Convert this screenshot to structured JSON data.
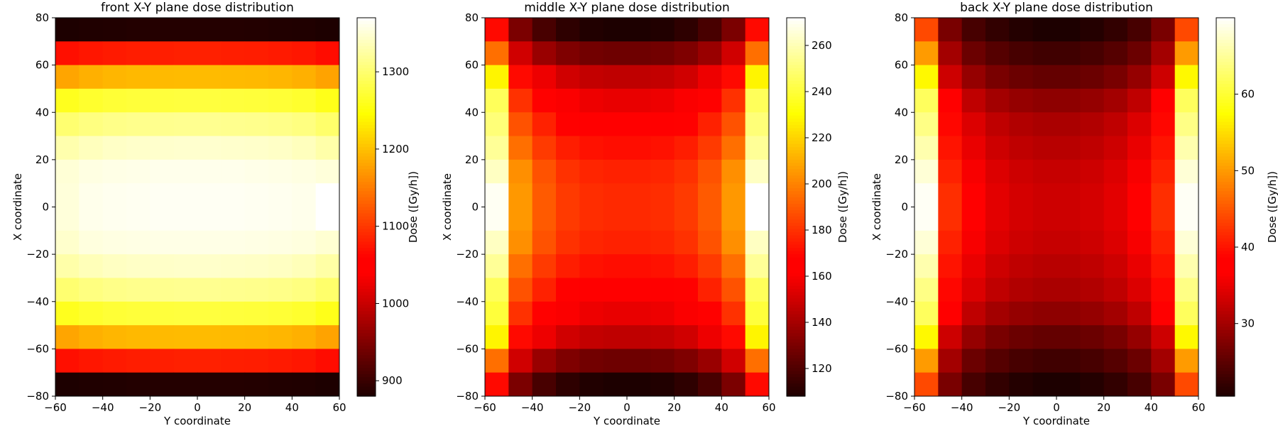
{
  "colormap": "hot",
  "colors": {
    "axis": "#000000",
    "background": "#ffffff"
  },
  "chart_data": [
    {
      "type": "heatmap",
      "title": "front X-Y plane dose distribution",
      "xlabel": "Y coordinate",
      "ylabel": "X coordinate",
      "colorbar_label": "Dose ([Gy/h])",
      "xlim": [
        -60,
        60
      ],
      "ylim": [
        -80,
        80
      ],
      "x_ticks": [
        "−60",
        "−40",
        "−20",
        "0",
        "20",
        "40",
        "60"
      ],
      "y_ticks": [
        "−80",
        "−60",
        "−40",
        "−20",
        "0",
        "20",
        "40",
        "60",
        "80"
      ],
      "x_edges": [
        -60,
        -50,
        -40,
        -30,
        -20,
        -10,
        0,
        10,
        20,
        30,
        40,
        50,
        60
      ],
      "y_edges": [
        80,
        70,
        60,
        50,
        40,
        30,
        20,
        10,
        0,
        -10,
        -20,
        -30,
        -40,
        -50,
        -60,
        -70,
        -80
      ],
      "clim": [
        880,
        1370
      ],
      "colorbar_ticks": [
        "900",
        "1000",
        "1100",
        "1200",
        "1300"
      ],
      "z": [
        [
          880,
          882,
          883,
          884,
          885,
          885,
          885,
          885,
          884,
          883,
          882,
          880
        ],
        [
          1070,
          1075,
          1078,
          1080,
          1081,
          1082,
          1082,
          1081,
          1080,
          1078,
          1075,
          1068
        ],
        [
          1180,
          1188,
          1192,
          1194,
          1195,
          1196,
          1196,
          1195,
          1194,
          1192,
          1188,
          1178
        ],
        [
          1260,
          1268,
          1272,
          1274,
          1275,
          1276,
          1276,
          1275,
          1274,
          1272,
          1268,
          1258
        ],
        [
          1300,
          1308,
          1312,
          1314,
          1315,
          1316,
          1316,
          1315,
          1314,
          1312,
          1308,
          1298
        ],
        [
          1330,
          1338,
          1342,
          1344,
          1345,
          1346,
          1346,
          1345,
          1344,
          1342,
          1338,
          1328
        ],
        [
          1350,
          1356,
          1358,
          1359,
          1360,
          1360,
          1360,
          1360,
          1359,
          1358,
          1356,
          1352
        ],
        [
          1352,
          1360,
          1362,
          1363,
          1364,
          1364,
          1364,
          1364,
          1363,
          1362,
          1360,
          1370
        ],
        [
          1352,
          1360,
          1362,
          1363,
          1364,
          1364,
          1364,
          1364,
          1363,
          1362,
          1360,
          1370
        ],
        [
          1345,
          1354,
          1356,
          1357,
          1358,
          1358,
          1358,
          1358,
          1357,
          1356,
          1354,
          1348
        ],
        [
          1328,
          1336,
          1340,
          1342,
          1343,
          1344,
          1344,
          1343,
          1342,
          1340,
          1336,
          1326
        ],
        [
          1300,
          1308,
          1312,
          1314,
          1315,
          1316,
          1316,
          1315,
          1314,
          1312,
          1308,
          1298
        ],
        [
          1260,
          1268,
          1272,
          1274,
          1275,
          1276,
          1276,
          1275,
          1274,
          1272,
          1268,
          1258
        ],
        [
          1180,
          1188,
          1192,
          1194,
          1195,
          1196,
          1196,
          1195,
          1194,
          1192,
          1188,
          1178
        ],
        [
          1070,
          1075,
          1078,
          1080,
          1081,
          1082,
          1082,
          1081,
          1080,
          1078,
          1075,
          1068
        ],
        [
          880,
          882,
          883,
          884,
          885,
          885,
          885,
          885,
          884,
          883,
          882,
          880
        ]
      ]
    },
    {
      "type": "heatmap",
      "title": "middle X-Y plane dose distribution",
      "xlabel": "Y coordinate",
      "ylabel": "X coordinate",
      "colorbar_label": "Dose ([Gy/h])",
      "xlim": [
        -60,
        60
      ],
      "ylim": [
        -80,
        80
      ],
      "x_ticks": [
        "−60",
        "−40",
        "−20",
        "0",
        "20",
        "40",
        "60"
      ],
      "y_ticks": [
        "−80",
        "−60",
        "−40",
        "−20",
        "0",
        "20",
        "40",
        "60",
        "80"
      ],
      "x_edges": [
        -60,
        -50,
        -40,
        -30,
        -20,
        -10,
        0,
        10,
        20,
        30,
        40,
        50,
        60
      ],
      "y_edges": [
        80,
        70,
        60,
        50,
        40,
        30,
        20,
        10,
        0,
        -10,
        -20,
        -30,
        -40,
        -50,
        -60,
        -70,
        -80
      ],
      "clim": [
        108,
        272
      ],
      "colorbar_ticks": [
        "120",
        "140",
        "160",
        "180",
        "200",
        "220",
        "240",
        "260"
      ],
      "z": [
        [
          170,
          130,
          118,
          112,
          109,
          108,
          108,
          109,
          112,
          118,
          130,
          170
        ],
        [
          195,
          150,
          137,
          131,
          128,
          127,
          127,
          128,
          131,
          137,
          150,
          195
        ],
        [
          228,
          170,
          157,
          150,
          147,
          146,
          146,
          147,
          150,
          157,
          170,
          228
        ],
        [
          245,
          180,
          168,
          160,
          157,
          156,
          156,
          157,
          160,
          168,
          180,
          245
        ],
        [
          250,
          188,
          176,
          168,
          165,
          164,
          164,
          165,
          168,
          176,
          188,
          250
        ],
        [
          255,
          195,
          182,
          175,
          172,
          171,
          171,
          172,
          175,
          182,
          195,
          255
        ],
        [
          262,
          203,
          188,
          180,
          177,
          176,
          176,
          177,
          180,
          188,
          203,
          262
        ],
        [
          270,
          205,
          190,
          182,
          179,
          178,
          178,
          179,
          182,
          190,
          205,
          272
        ],
        [
          270,
          205,
          190,
          182,
          179,
          178,
          178,
          179,
          182,
          190,
          205,
          272
        ],
        [
          262,
          203,
          188,
          180,
          177,
          176,
          176,
          177,
          180,
          188,
          203,
          262
        ],
        [
          255,
          195,
          182,
          175,
          172,
          171,
          171,
          172,
          175,
          182,
          195,
          255
        ],
        [
          245,
          188,
          176,
          168,
          165,
          164,
          164,
          165,
          168,
          176,
          188,
          245
        ],
        [
          240,
          180,
          168,
          160,
          157,
          156,
          156,
          157,
          160,
          168,
          180,
          240
        ],
        [
          228,
          170,
          157,
          150,
          147,
          146,
          146,
          147,
          150,
          157,
          170,
          228
        ],
        [
          195,
          150,
          137,
          131,
          128,
          127,
          127,
          128,
          131,
          137,
          150,
          195
        ],
        [
          170,
          130,
          118,
          112,
          109,
          108,
          108,
          109,
          112,
          118,
          130,
          170
        ]
      ]
    },
    {
      "type": "heatmap",
      "title": "back X-Y plane dose distribution",
      "xlabel": "Y coordinate",
      "ylabel": "X coordinate",
      "colorbar_label": "Dose ([Gy/h])",
      "xlim": [
        -60,
        60
      ],
      "ylim": [
        -80,
        80
      ],
      "x_ticks": [
        "−60",
        "−40",
        "−20",
        "0",
        "20",
        "40",
        "60"
      ],
      "y_ticks": [
        "−80",
        "−60",
        "−40",
        "−20",
        "0",
        "20",
        "40",
        "60",
        "80"
      ],
      "x_edges": [
        -60,
        -50,
        -40,
        -30,
        -20,
        -10,
        0,
        10,
        20,
        30,
        40,
        50,
        60
      ],
      "y_edges": [
        80,
        70,
        60,
        50,
        40,
        30,
        20,
        10,
        0,
        -10,
        -20,
        -30,
        -40,
        -50,
        -60,
        -70,
        -80
      ],
      "clim": [
        20.5,
        70
      ],
      "colorbar_ticks": [
        "30",
        "40",
        "50",
        "60"
      ],
      "z": [
        [
          44,
          27,
          23.5,
          22,
          21,
          20.5,
          20.5,
          21,
          22,
          23.5,
          27,
          44
        ],
        [
          50,
          30,
          26,
          24.5,
          23.5,
          23,
          23,
          23.5,
          24.5,
          26,
          30,
          50
        ],
        [
          57,
          33,
          29,
          27,
          26,
          25.5,
          25.5,
          26,
          27,
          29,
          33,
          57
        ],
        [
          62,
          37,
          32,
          30,
          29,
          28.5,
          28.5,
          29,
          30,
          32,
          37,
          62
        ],
        [
          64,
          39,
          34,
          32,
          31,
          30.5,
          30.5,
          31,
          32,
          34,
          39,
          64
        ],
        [
          66,
          40,
          35,
          33,
          32,
          31.5,
          31.5,
          32,
          33,
          35,
          40,
          66
        ],
        [
          68,
          41,
          36,
          34,
          33,
          32.5,
          32.5,
          33,
          34,
          36,
          41,
          68
        ],
        [
          69.5,
          42,
          36.5,
          34.5,
          33.5,
          33,
          33,
          33.5,
          34.5,
          36.5,
          42,
          69.5
        ],
        [
          69.5,
          42,
          36.5,
          34.5,
          33.5,
          33,
          33,
          33.5,
          34.5,
          36.5,
          42,
          69.5
        ],
        [
          68,
          41,
          36,
          34,
          33,
          32.5,
          32.5,
          33,
          34,
          36,
          41,
          68
        ],
        [
          66,
          40,
          35,
          33,
          32,
          31.5,
          31.5,
          32,
          33,
          35,
          40,
          66
        ],
        [
          64,
          39,
          34,
          32,
          31,
          30.5,
          30.5,
          31,
          32,
          34,
          39,
          64
        ],
        [
          62,
          37,
          32,
          30,
          29,
          28.5,
          28.5,
          29,
          30,
          32,
          37,
          62
        ],
        [
          57,
          33,
          29,
          27,
          26,
          25.5,
          25.5,
          26,
          27,
          29,
          33,
          57
        ],
        [
          50,
          30,
          26,
          24.5,
          23.5,
          23,
          23,
          23.5,
          24.5,
          26,
          30,
          50
        ],
        [
          44,
          27,
          23.5,
          22,
          21,
          20.5,
          20.5,
          21,
          22,
          23.5,
          27,
          44
        ]
      ]
    }
  ]
}
